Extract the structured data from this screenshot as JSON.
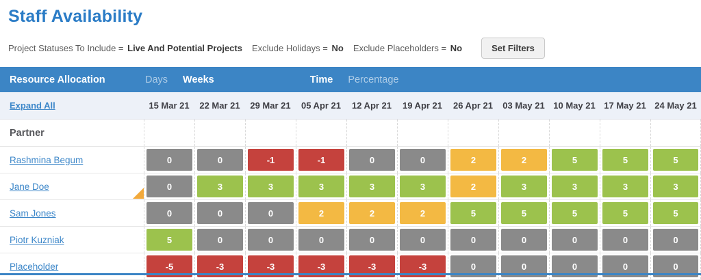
{
  "page": {
    "title": "Staff Availability"
  },
  "filters": {
    "items": [
      {
        "label": "Project Statuses To Include =",
        "value": "Live And Potential Projects"
      },
      {
        "label": "Exclude Holidays =",
        "value": "No"
      },
      {
        "label": "Exclude Placeholders =",
        "value": "No"
      }
    ],
    "set_filters_label": "Set Filters"
  },
  "toolbar": {
    "title": "Resource Allocation",
    "unit_options": [
      "Days",
      "Weeks"
    ],
    "unit_selected": "Weeks",
    "display_options": [
      "Time",
      "Percentage"
    ],
    "display_selected": "Time"
  },
  "table": {
    "expand_all_label": "Expand All",
    "group_label": "Partner",
    "columns": [
      "15 Mar 21",
      "22 Mar 21",
      "29 Mar 21",
      "05 Apr 21",
      "12 Apr 21",
      "19 Apr 21",
      "26 Apr 21",
      "03 May 21",
      "10 May 21",
      "17 May 21",
      "24 May 21"
    ],
    "rows": [
      {
        "name": "Rashmina Begum",
        "flagged": false,
        "values": [
          0,
          0,
          -1,
          -1,
          0,
          0,
          2,
          2,
          5,
          5,
          5
        ]
      },
      {
        "name": "Jane Doe",
        "flagged": true,
        "values": [
          0,
          3,
          3,
          3,
          3,
          3,
          2,
          3,
          3,
          3,
          3
        ]
      },
      {
        "name": "Sam Jones",
        "flagged": false,
        "values": [
          0,
          0,
          0,
          2,
          2,
          2,
          5,
          5,
          5,
          5,
          5
        ]
      },
      {
        "name": "Piotr Kuzniak",
        "flagged": false,
        "values": [
          5,
          0,
          0,
          0,
          0,
          0,
          0,
          0,
          0,
          0,
          0
        ]
      },
      {
        "name": "Placeholder",
        "flagged": false,
        "values": [
          -5,
          -3,
          -3,
          -3,
          -3,
          -3,
          0,
          0,
          0,
          0,
          0
        ]
      }
    ]
  },
  "colors": {
    "accent_blue": "#3c85c5",
    "cell_negative": "#c5423d",
    "cell_zero": "#8a8a8a",
    "cell_low": "#f3b943",
    "cell_high": "#9cc24d",
    "flag_orange": "#f2a93b",
    "link_blue": "#3d87c9"
  }
}
